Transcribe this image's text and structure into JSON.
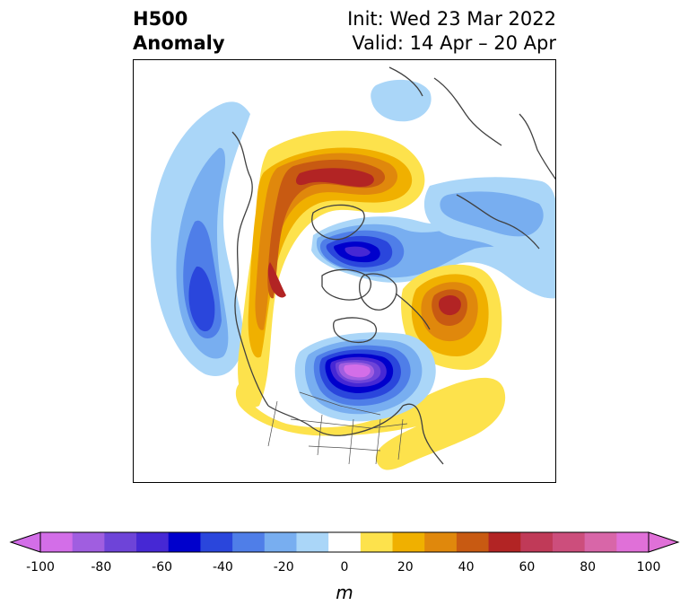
{
  "title": {
    "left_line1": "H500",
    "left_line2": "Anomaly",
    "right_line1": "Init: Wed 23 Mar 2022",
    "right_line2": "Valid: 14 Apr – 20 Apr"
  },
  "colorbar": {
    "label": "m",
    "min": -100,
    "max": 100,
    "extend": "both",
    "ticks": [
      "-100",
      "-80",
      "-60",
      "-40",
      "-20",
      "0",
      "20",
      "40",
      "60",
      "80",
      "100"
    ],
    "colors": [
      "#d36ee8",
      "#a05ee0",
      "#6e44d8",
      "#4628d4",
      "#0000cc",
      "#2a46dc",
      "#4f7ee8",
      "#78aef0",
      "#aad6f8",
      "#ffffff",
      "#fde24c",
      "#f0b000",
      "#e0880c",
      "#c85a12",
      "#b22424",
      "#c03a58",
      "#cc4e7c",
      "#d866a8",
      "#e070d8"
    ]
  },
  "map": {
    "projection": "north-polar-stereographic",
    "region": "North America / Arctic",
    "anomalies": [
      {
        "feature": "negative-center-north-america",
        "peak_m": -100
      },
      {
        "feature": "negative-center-arctic",
        "peak_m": -70
      },
      {
        "feature": "negative-center-north-pacific",
        "peak_m": -50
      },
      {
        "feature": "negative-band-siberia",
        "peak_m": -30
      },
      {
        "feature": "positive-ridge-western-north-america",
        "peak_m": 60
      },
      {
        "feature": "positive-ridge-greenland-atlantic",
        "peak_m": 60
      },
      {
        "feature": "positive-ridge-alaska-beaufort",
        "peak_m": 60
      }
    ]
  }
}
